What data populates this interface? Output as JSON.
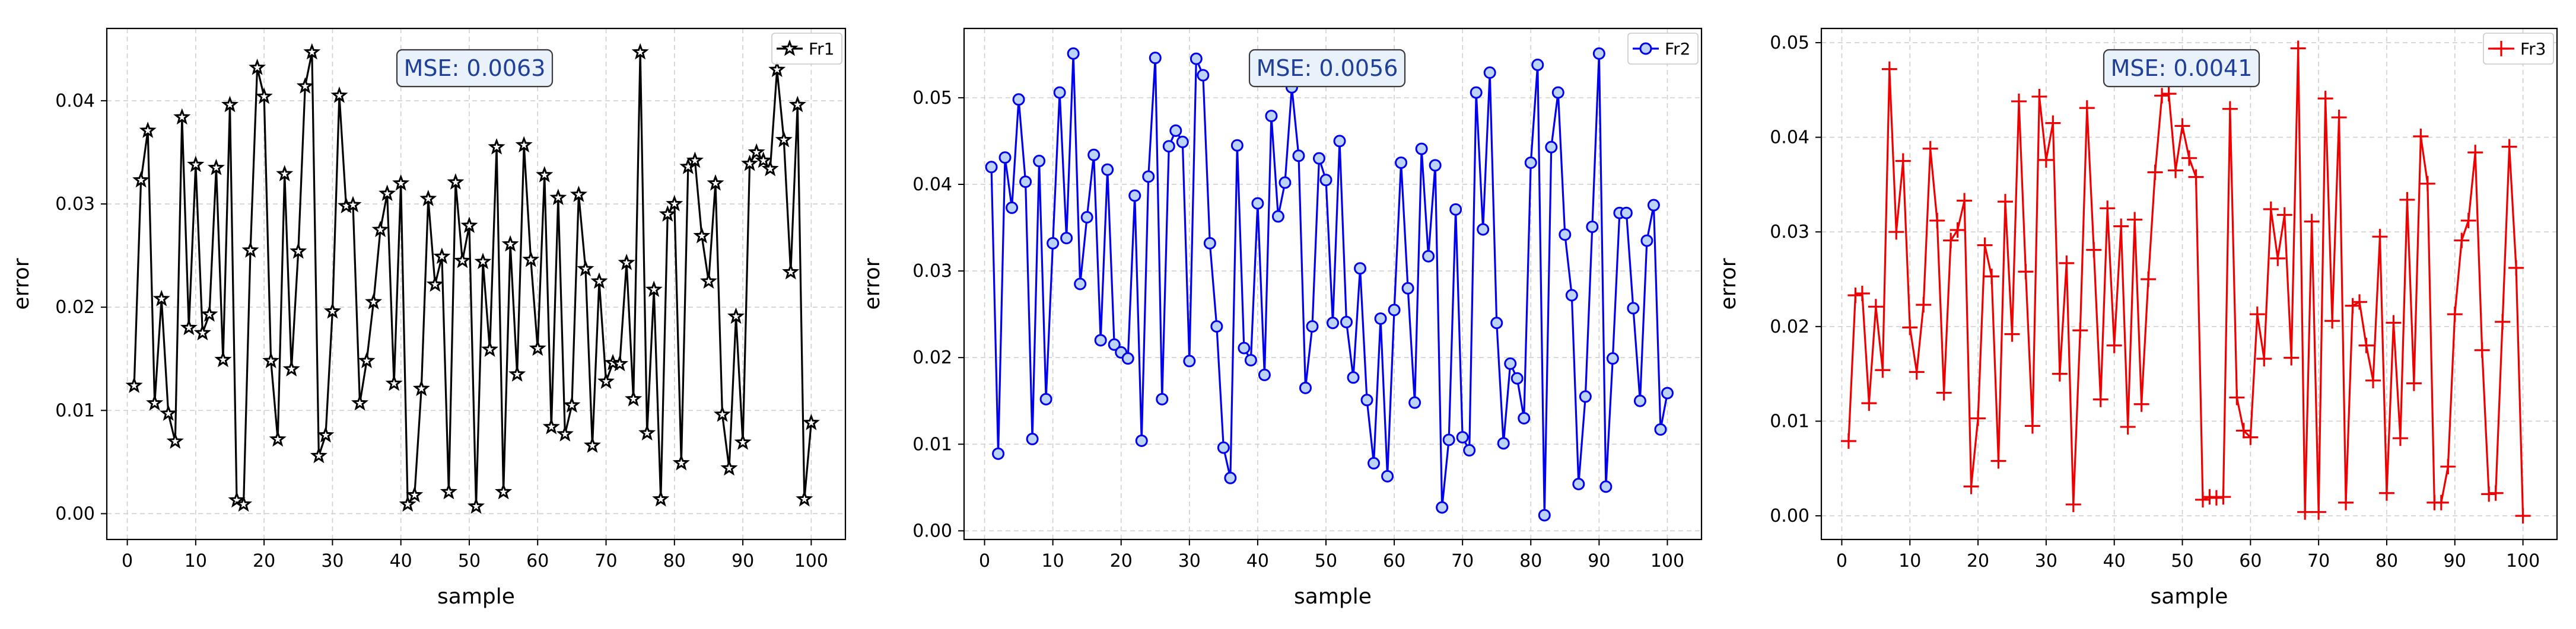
{
  "chart_data": [
    {
      "type": "line",
      "xlabel": "sample",
      "ylabel": "error",
      "xlim": [
        -3,
        105
      ],
      "ylim": [
        -0.0025,
        0.047
      ],
      "xticks": [
        0,
        10,
        20,
        30,
        40,
        50,
        60,
        70,
        80,
        90,
        100
      ],
      "yticks": [
        0.0,
        0.01,
        0.02,
        0.03,
        0.04
      ],
      "ytick_labels": [
        "0.00",
        "0.01",
        "0.02",
        "0.03",
        "0.04"
      ],
      "grid": true,
      "legend": "top-right",
      "annotation": "MSE: 0.0063",
      "series": [
        {
          "name": "Fr1",
          "color": "#000000",
          "marker": "star",
          "x": [
            1,
            2,
            3,
            4,
            5,
            6,
            7,
            8,
            9,
            10,
            11,
            12,
            13,
            14,
            15,
            16,
            17,
            18,
            19,
            20,
            21,
            22,
            23,
            24,
            25,
            26,
            27,
            28,
            29,
            30,
            31,
            32,
            33,
            34,
            35,
            36,
            37,
            38,
            39,
            40,
            41,
            42,
            43,
            44,
            45,
            46,
            47,
            48,
            49,
            50,
            51,
            52,
            53,
            54,
            55,
            56,
            57,
            58,
            59,
            60,
            61,
            62,
            63,
            64,
            65,
            66,
            67,
            68,
            69,
            70,
            71,
            72,
            73,
            74,
            75,
            76,
            77,
            78,
            79,
            80,
            81,
            82,
            83,
            84,
            85,
            86,
            87,
            88,
            89,
            90,
            91,
            92,
            93,
            94,
            95,
            96,
            97,
            98,
            99,
            100
          ],
          "values": [
            0.0124,
            0.0323,
            0.0371,
            0.0107,
            0.0208,
            0.0097,
            0.007,
            0.0384,
            0.018,
            0.0338,
            0.0175,
            0.0193,
            0.0335,
            0.0149,
            0.0396,
            0.0013,
            0.0009,
            0.0255,
            0.0432,
            0.0404,
            0.0148,
            0.0072,
            0.0329,
            0.014,
            0.0254,
            0.0414,
            0.0447,
            0.0056,
            0.0076,
            0.0196,
            0.0405,
            0.0298,
            0.0299,
            0.0107,
            0.0148,
            0.0205,
            0.0275,
            0.031,
            0.0126,
            0.032,
            0.0009,
            0.0018,
            0.0121,
            0.0305,
            0.0222,
            0.0249,
            0.0021,
            0.0321,
            0.0245,
            0.0279,
            0.0007,
            0.0244,
            0.0159,
            0.0355,
            0.0021,
            0.0261,
            0.0135,
            0.0357,
            0.0246,
            0.016,
            0.0328,
            0.0084,
            0.0306,
            0.0077,
            0.0105,
            0.0309,
            0.0237,
            0.0066,
            0.0225,
            0.0128,
            0.0146,
            0.0145,
            0.0243,
            0.0111,
            0.0447,
            0.0078,
            0.0217,
            0.0014,
            0.029,
            0.03,
            0.0049,
            0.0336,
            0.0342,
            0.0269,
            0.0225,
            0.032,
            0.0096,
            0.0044,
            0.0191,
            0.0069,
            0.0339,
            0.035,
            0.0342,
            0.0334,
            0.043,
            0.0362,
            0.0234,
            0.0396,
            0.0014,
            0.0088
          ]
        }
      ]
    },
    {
      "type": "line",
      "xlabel": "sample",
      "ylabel": "error",
      "xlim": [
        -3,
        105
      ],
      "ylim": [
        -0.001,
        0.058
      ],
      "xticks": [
        0,
        10,
        20,
        30,
        40,
        50,
        60,
        70,
        80,
        90,
        100
      ],
      "yticks": [
        0.0,
        0.01,
        0.02,
        0.03,
        0.04,
        0.05
      ],
      "ytick_labels": [
        "0.00",
        "0.01",
        "0.02",
        "0.03",
        "0.04",
        "0.05"
      ],
      "grid": true,
      "legend": "top-right",
      "annotation": "MSE: 0.0056",
      "series": [
        {
          "name": "Fr2",
          "color": "#0000ee",
          "marker": "circle",
          "x": [
            1,
            2,
            3,
            4,
            5,
            6,
            7,
            8,
            9,
            10,
            11,
            12,
            13,
            14,
            15,
            16,
            17,
            18,
            19,
            20,
            21,
            22,
            23,
            24,
            25,
            26,
            27,
            28,
            29,
            30,
            31,
            32,
            33,
            34,
            35,
            36,
            37,
            38,
            39,
            40,
            41,
            42,
            43,
            44,
            45,
            46,
            47,
            48,
            49,
            50,
            51,
            52,
            53,
            54,
            55,
            56,
            57,
            58,
            59,
            60,
            61,
            62,
            63,
            64,
            65,
            66,
            67,
            68,
            69,
            70,
            71,
            72,
            73,
            74,
            75,
            76,
            77,
            78,
            79,
            80,
            81,
            82,
            83,
            84,
            85,
            86,
            87,
            88,
            89,
            90,
            91,
            92,
            93,
            94,
            95,
            96,
            97,
            98,
            99,
            100
          ],
          "values": [
            0.042,
            0.0089,
            0.0431,
            0.0373,
            0.0498,
            0.0403,
            0.0106,
            0.0427,
            0.0152,
            0.0332,
            0.0506,
            0.0338,
            0.0551,
            0.0285,
            0.0362,
            0.0434,
            0.022,
            0.0417,
            0.0215,
            0.0206,
            0.0199,
            0.0387,
            0.0104,
            0.0409,
            0.0546,
            0.0152,
            0.0444,
            0.0462,
            0.0449,
            0.0196,
            0.0545,
            0.0526,
            0.0332,
            0.0236,
            0.0096,
            0.0061,
            0.0445,
            0.0211,
            0.0197,
            0.0378,
            0.018,
            0.0479,
            0.0363,
            0.0402,
            0.0512,
            0.0433,
            0.0165,
            0.0236,
            0.043,
            0.0405,
            0.024,
            0.045,
            0.0241,
            0.0177,
            0.0303,
            0.0151,
            0.0078,
            0.0245,
            0.0063,
            0.0255,
            0.0425,
            0.028,
            0.0148,
            0.0441,
            0.0317,
            0.0422,
            0.0027,
            0.0105,
            0.0371,
            0.0108,
            0.0093,
            0.0506,
            0.0348,
            0.0529,
            0.024,
            0.0101,
            0.0193,
            0.0176,
            0.013,
            0.0425,
            0.0538,
            0.0018,
            0.0443,
            0.0506,
            0.0342,
            0.0272,
            0.0054,
            0.0155,
            0.0351,
            0.0551,
            0.0051,
            0.0199,
            0.0367,
            0.0367,
            0.0257,
            0.015,
            0.0335,
            0.0376,
            0.0117,
            0.0159
          ]
        }
      ]
    },
    {
      "type": "line",
      "xlabel": "sample",
      "ylabel": "error",
      "xlim": [
        -3,
        105
      ],
      "ylim": [
        -0.0025,
        0.0515
      ],
      "xticks": [
        0,
        10,
        20,
        30,
        40,
        50,
        60,
        70,
        80,
        90,
        100
      ],
      "yticks": [
        0.0,
        0.01,
        0.02,
        0.03,
        0.04,
        0.05
      ],
      "ytick_labels": [
        "0.00",
        "0.01",
        "0.02",
        "0.03",
        "0.04",
        "0.05"
      ],
      "grid": true,
      "legend": "top-right",
      "annotation": "MSE: 0.0041",
      "series": [
        {
          "name": "Fr3",
          "color": "#ee0000",
          "marker": "plus",
          "x": [
            1,
            2,
            3,
            4,
            5,
            6,
            7,
            8,
            9,
            10,
            11,
            12,
            13,
            14,
            15,
            16,
            17,
            18,
            19,
            20,
            21,
            22,
            23,
            24,
            25,
            26,
            27,
            28,
            29,
            30,
            31,
            32,
            33,
            34,
            35,
            36,
            37,
            38,
            39,
            40,
            41,
            42,
            43,
            44,
            45,
            46,
            47,
            48,
            49,
            50,
            51,
            52,
            53,
            54,
            55,
            56,
            57,
            58,
            59,
            60,
            61,
            62,
            63,
            64,
            65,
            66,
            67,
            68,
            69,
            70,
            71,
            72,
            73,
            74,
            75,
            76,
            77,
            78,
            79,
            80,
            81,
            82,
            83,
            84,
            85,
            86,
            87,
            88,
            89,
            90,
            91,
            92,
            93,
            94,
            95,
            96,
            97,
            98,
            99,
            100
          ],
          "values": [
            0.0079,
            0.0233,
            0.0235,
            0.0119,
            0.0221,
            0.0154,
            0.0472,
            0.03,
            0.0375,
            0.0199,
            0.0152,
            0.0223,
            0.0388,
            0.0312,
            0.013,
            0.0291,
            0.0302,
            0.0333,
            0.0031,
            0.0103,
            0.0286,
            0.0253,
            0.0058,
            0.0332,
            0.0192,
            0.0438,
            0.0258,
            0.0095,
            0.0443,
            0.0376,
            0.0415,
            0.015,
            0.0267,
            0.0012,
            0.0196,
            0.0431,
            0.0281,
            0.0123,
            0.0325,
            0.018,
            0.0306,
            0.0094,
            0.0313,
            0.0118,
            0.025,
            0.0363,
            0.0444,
            0.0446,
            0.0365,
            0.0412,
            0.0378,
            0.0358,
            0.0017,
            0.002,
            0.0019,
            0.002,
            0.043,
            0.0125,
            0.009,
            0.0083,
            0.0213,
            0.0166,
            0.0324,
            0.0272,
            0.0318,
            0.0167,
            0.0494,
            0.0004,
            0.0311,
            0.0004,
            0.0441,
            0.0206,
            0.0421,
            0.0014,
            0.0222,
            0.0226,
            0.018,
            0.0143,
            0.0295,
            0.0024,
            0.0204,
            0.0082,
            0.0334,
            0.014,
            0.0401,
            0.0351,
            0.0014,
            0.0014,
            0.0052,
            0.0213,
            0.0291,
            0.0312,
            0.0384,
            0.0175,
            0.0023,
            0.0024,
            0.0205,
            0.039,
            0.0262,
            0.0
          ]
        }
      ]
    }
  ]
}
